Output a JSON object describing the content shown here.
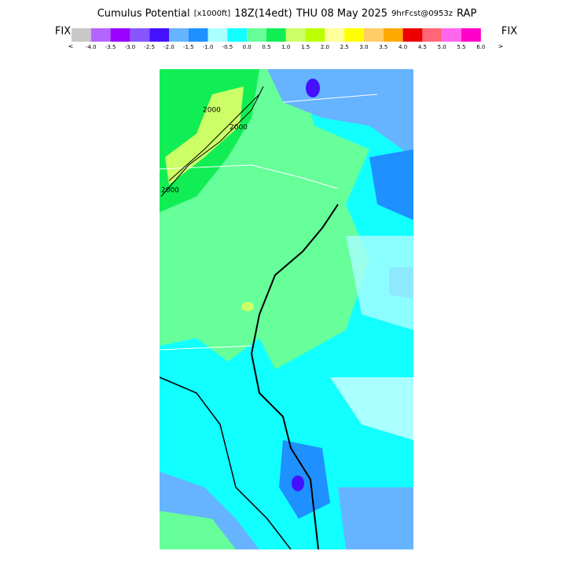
{
  "header": {
    "title_parts": [
      "Cumulus Potential",
      "[x1000ft]",
      "18Z(14edt)",
      "THU 08 May 2025",
      "9hrFcst@0953z",
      "RAP"
    ]
  },
  "colorbar": {
    "left_label": "FIX",
    "right_label": "FIX",
    "left_arrow": "<",
    "right_arrow": ">",
    "colors": [
      "#c8c8c8",
      "#b266ff",
      "#9900ff",
      "#8855ff",
      "#4411ff",
      "#66b3ff",
      "#1e90ff",
      "#aaffff",
      "#11ffff",
      "#66ff99",
      "#11ee55",
      "#ccff66",
      "#bbff00",
      "#ffff99",
      "#ffff00",
      "#ffcc66",
      "#ffaa00",
      "#ee0000",
      "#ff6677",
      "#ff66ee",
      "#ff00cc"
    ],
    "labels": [
      "-4.0",
      "-3.5",
      "-3.0",
      "-2.5",
      "-2.0",
      "-1.5",
      "-1.0",
      "-0.5",
      "0.0",
      "0.5",
      "1.0",
      "1.5",
      "2.0",
      "2.5",
      "3.0",
      "3.5",
      "4.0",
      "4.5",
      "5.0",
      "5.5",
      "6.0"
    ]
  },
  "map": {
    "contour_labels": [
      "2000",
      "2000",
      "2000"
    ]
  }
}
